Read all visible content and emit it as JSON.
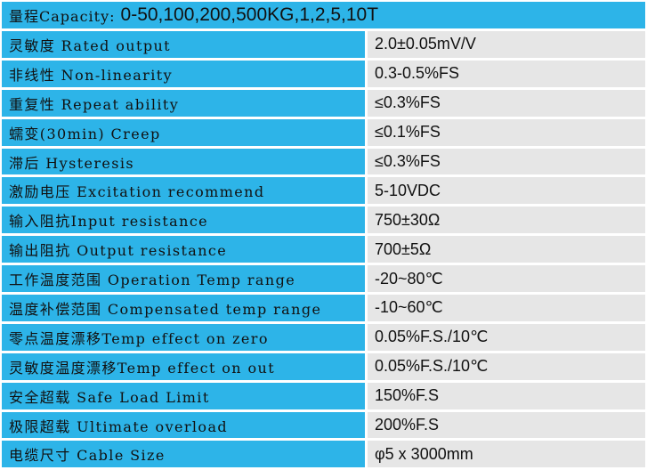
{
  "header": {
    "label": "量程Capacity:",
    "value": "0-50,100,200,500KG,1,2,5,10T"
  },
  "colors": {
    "label_bg": "#2DB4E8",
    "value_bg": "#E6E6E6"
  },
  "rows": [
    {
      "label": "灵敏度 Rated output",
      "value": "2.0±0.05mV/V"
    },
    {
      "label": "非线性 Non-linearity",
      "value": "0.3-0.5%FS"
    },
    {
      "label": "重复性 Repeat ability",
      "value": "≤0.3%FS"
    },
    {
      "label": "蠕变(30min) Creep",
      "value": "≤0.1%FS"
    },
    {
      "label": "滞后 Hysteresis",
      "value": "≤0.3%FS"
    },
    {
      "label": "激励电压 Excitation recommend",
      "value": "5-10VDC"
    },
    {
      "label": "输入阻抗Input resistance",
      "value": "750±30Ω"
    },
    {
      "label": "输出阻抗 Output resistance",
      "value": "700±5Ω"
    },
    {
      "label": "工作温度范围 Operation Temp range",
      "value": "-20~80℃"
    },
    {
      "label": "温度补偿范围 Compensated temp range",
      "value": "-10~60℃"
    },
    {
      "label": "零点温度漂移Temp effect on zero",
      "value": "0.05%F.S./10℃"
    },
    {
      "label": "灵敏度温度漂移Temp effect on out",
      "value": "0.05%F.S./10℃"
    },
    {
      "label": "安全超载 Safe Load Limit",
      "value": "150%F.S"
    },
    {
      "label": "极限超载 Ultimate overload",
      "value": "200%F.S"
    },
    {
      "label": "电缆尺寸 Cable Size",
      "value": "φ5 x 3000mm"
    }
  ]
}
